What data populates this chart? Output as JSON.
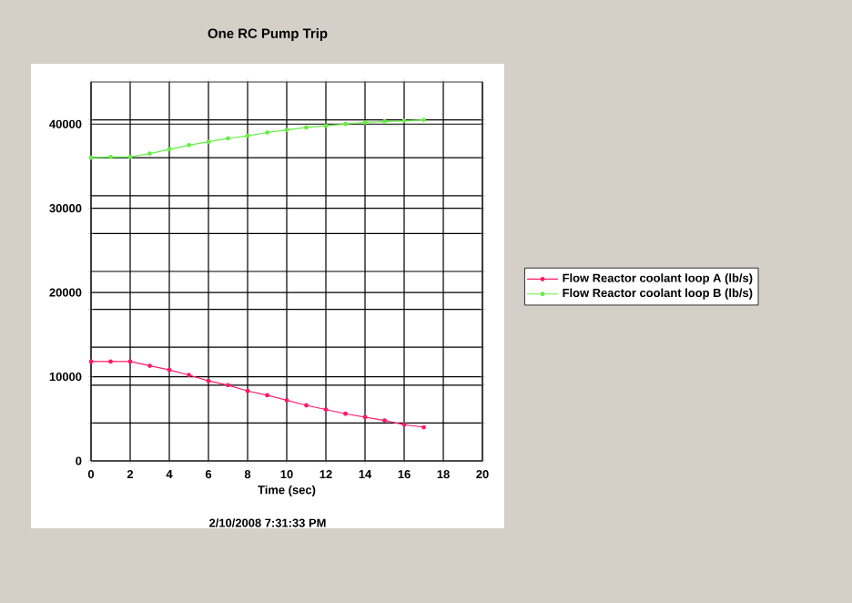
{
  "chart_data": {
    "type": "line",
    "title": "One RC Pump Trip",
    "xlabel": "Time (sec)",
    "x": [
      0,
      1,
      2,
      3,
      4,
      5,
      6,
      7,
      8,
      9,
      10,
      11,
      12,
      13,
      14,
      15,
      16,
      17
    ],
    "series": [
      {
        "name": "Flow Reactor coolant loop A (lb/s)",
        "color": "#ff1a66",
        "values": [
          11800,
          11800,
          11800,
          11300,
          10800,
          10200,
          9500,
          9000,
          8300,
          7800,
          7200,
          6600,
          6100,
          5600,
          5200,
          4800,
          4300,
          4000
        ]
      },
      {
        "name": "Flow Reactor coolant loop B (lb/s)",
        "color": "#66ee44",
        "values": [
          36000,
          36100,
          36100,
          36500,
          37000,
          37500,
          37900,
          38300,
          38600,
          39000,
          39300,
          39600,
          39800,
          40000,
          40200,
          40300,
          40400,
          40500
        ]
      }
    ],
    "xlim": [
      0,
      20
    ],
    "ylim": [
      0,
      45000
    ],
    "xticks": [
      0,
      2,
      4,
      6,
      8,
      10,
      12,
      14,
      16,
      18,
      20
    ],
    "yticks": [
      0,
      {
        "value": 4500,
        "label": null
      },
      {
        "value": 9000,
        "label": null
      },
      10000,
      {
        "value": 13500,
        "label": null
      },
      {
        "value": 18000,
        "label": null
      },
      20000,
      {
        "value": 22500,
        "label": null
      },
      {
        "value": 27000,
        "label": null
      },
      30000,
      {
        "value": 31500,
        "label": null
      },
      {
        "value": 36000,
        "label": null
      },
      40000,
      {
        "value": 40500,
        "label": null
      }
    ],
    "grid": true,
    "legend": "right",
    "marker": "circle",
    "line_style": "solid",
    "annotations": [
      "2/10/2008 7:31:33 PM"
    ]
  }
}
